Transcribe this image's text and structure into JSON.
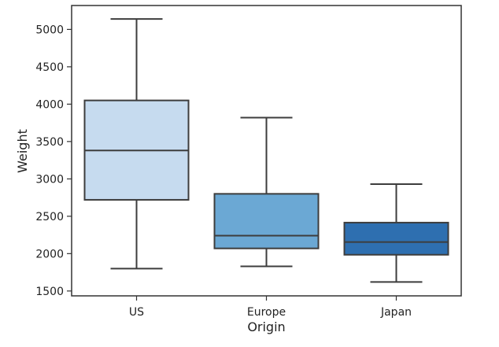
{
  "chart_data": {
    "type": "box",
    "title": "",
    "xlabel": "Origin",
    "ylabel": "Weight",
    "categories": [
      "US",
      "Europe",
      "Japan"
    ],
    "boxes": [
      {
        "category": "US",
        "whisker_low": 1800,
        "q1": 2720,
        "median": 3380,
        "q3": 4050,
        "whisker_high": 5140,
        "color": "#c6dbef"
      },
      {
        "category": "Europe",
        "whisker_low": 1830,
        "q1": 2070,
        "median": 2240,
        "q3": 2800,
        "whisker_high": 3820,
        "color": "#6ba8d4"
      },
      {
        "category": "Japan",
        "whisker_low": 1620,
        "q1": 1985,
        "median": 2155,
        "q3": 2415,
        "whisker_high": 2930,
        "color": "#2e6fb0"
      }
    ],
    "yticks": [
      1500,
      2000,
      2500,
      3000,
      3500,
      4000,
      4500,
      5000
    ],
    "ylim": [
      1435,
      5320
    ],
    "grid": false,
    "line_color": "#3d3d3d"
  }
}
